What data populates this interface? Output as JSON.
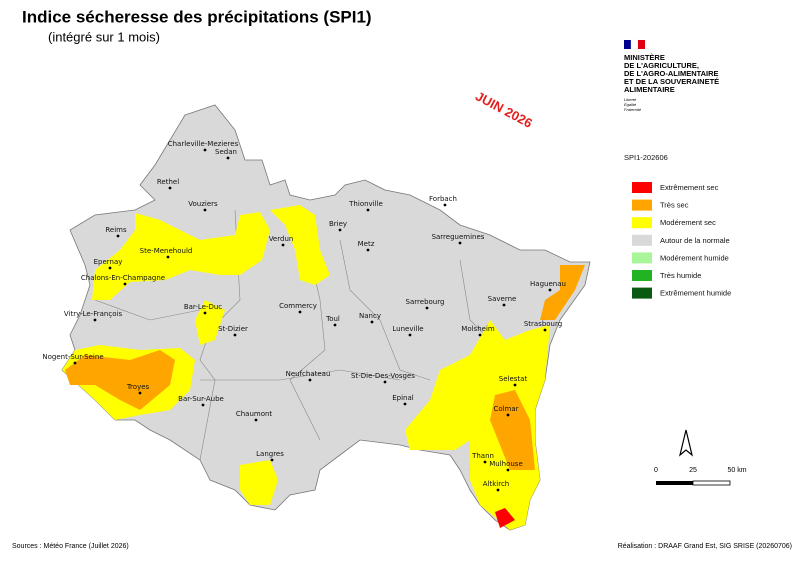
{
  "header": {
    "title": "Indice sécheresse des précipitations (SPI1)",
    "subtitle": "(intégré sur 1 mois)"
  },
  "logo": {
    "lines": [
      "MINISTÈRE",
      "DE L'AGRICULTURE,",
      "DE L'AGRO-ALIMENTAIRE",
      "ET DE LA SOUVERAINETÉ",
      "ALIMENTAIRE"
    ],
    "motto": [
      "Liberté",
      "Égalité",
      "Fraternité"
    ]
  },
  "stamp": "JUIN 2026",
  "legend": {
    "title": "SPI1-202606",
    "items": [
      {
        "label": "Extrêmement sec",
        "color": "#ff0000"
      },
      {
        "label": "Très sec",
        "color": "#ffa500"
      },
      {
        "label": "Modérement sec",
        "color": "#ffff00"
      },
      {
        "label": "Autour de la normale",
        "color": "#d9d9d9"
      },
      {
        "label": "Modérement humide",
        "color": "#a8f59a"
      },
      {
        "label": "Très humide",
        "color": "#22b322"
      },
      {
        "label": "Extrêmement humide",
        "color": "#0b5a12"
      }
    ]
  },
  "cities": [
    "Charleville-Mezieres",
    "Sedan",
    "Rethel",
    "Vouziers",
    "Reims",
    "Ste-Menehould",
    "Epernay",
    "Chalons-En-Champagne",
    "Vitry-Le-François",
    "Bar-Le-Duc",
    "St-Dizier",
    "Verdun",
    "Briey",
    "Thionville",
    "Metz",
    "Forbach",
    "Sarreguemines",
    "Commercy",
    "Toul",
    "Nancy",
    "Luneville",
    "Sarrebourg",
    "Saverne",
    "Haguenau",
    "Strasbourg",
    "Molsheim",
    "Nogent-Sur-Seine",
    "Troyes",
    "Bar-Sur-Aube",
    "Chaumont",
    "Neufchateau",
    "St-Die-Des-Vosges",
    "Epinal",
    "Selestat",
    "Colmar",
    "Thann",
    "Mulhouse",
    "Altkirch",
    "Langres"
  ],
  "scale": {
    "labels": [
      "0",
      "25",
      "50 km"
    ]
  },
  "footer": {
    "sources": "Sources : Météo France (Juillet 2026)",
    "credit": "Réalisation : DRAAF Grand Est, SIG SRISE (20260706)"
  }
}
